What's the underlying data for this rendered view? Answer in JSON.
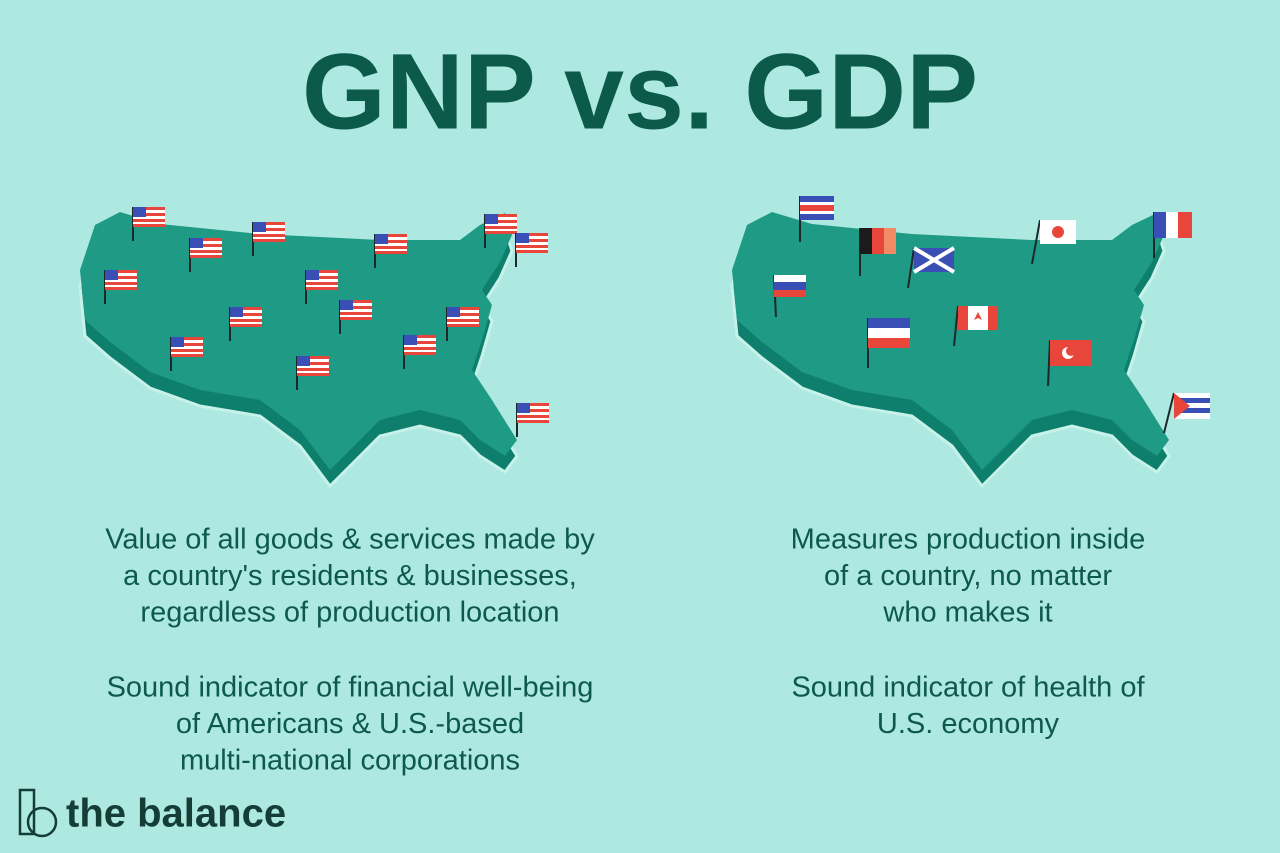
{
  "title": "GNP vs. GDP",
  "panels": [
    {
      "description": [
        "Value of all goods & services made by",
        "a country's residents & businesses,",
        "regardless of production location"
      ],
      "note": [
        "Sound indicator of financial well-being",
        "of Americans & U.S.-based",
        "multi-national corporations"
      ]
    },
    {
      "description": [
        "Measures production inside",
        "of a country, no matter",
        "who makes it"
      ],
      "note": [
        "Sound indicator of health of",
        "U.S. economy"
      ]
    }
  ],
  "brand": "the balance"
}
